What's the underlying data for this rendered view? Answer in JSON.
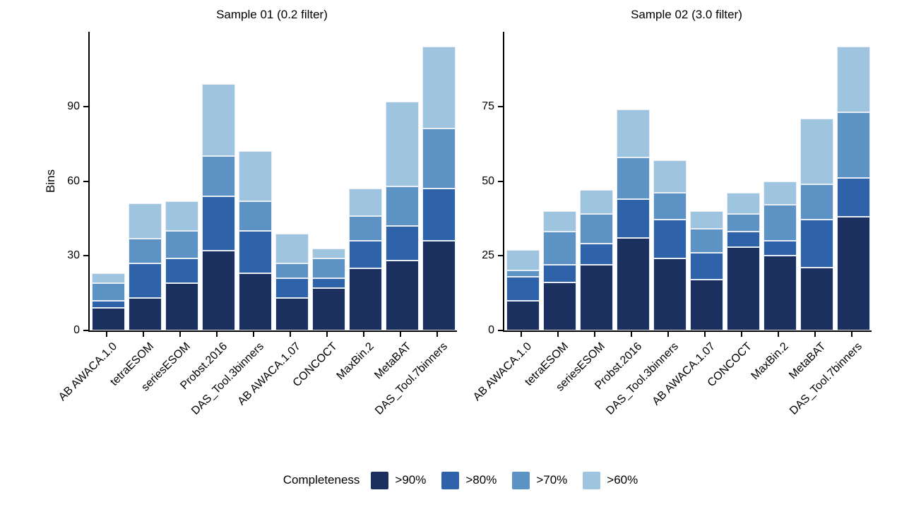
{
  "figure": {
    "y_axis_label": "Bins",
    "legend": {
      "title": "Completeness",
      "items": [
        {
          "label": ">90%",
          "color": "#1C3060"
        },
        {
          "label": ">80%",
          "color": "#2E63A9"
        },
        {
          "label": ">70%",
          "color": "#5D92C4"
        },
        {
          "label": ">60%",
          "color": "#9FC4E0"
        }
      ]
    }
  },
  "chart_data": [
    {
      "type": "bar",
      "stacked": true,
      "title": "Sample 01 (0.2 filter)",
      "xlabel": "",
      "ylabel": "Bins",
      "legend_position": "bottom",
      "grid": false,
      "categories": [
        "AB AWACA.1.0",
        "tetraESOM",
        "seriesESOM",
        "Probst.2016",
        "DAS_Tool.3binners",
        "AB AWACA.1.07",
        "CONCOCT",
        "MaxBin.2",
        "MetaBAT",
        "DAS_Tool.7binners"
      ],
      "series": [
        {
          "name": ">90%",
          "color": "#1C3060",
          "values": [
            9,
            13,
            19,
            32,
            23,
            13,
            17,
            25,
            28,
            36
          ]
        },
        {
          "name": ">80%",
          "color": "#2E63A9",
          "values": [
            3,
            14,
            10,
            22,
            17,
            8,
            4,
            11,
            14,
            21
          ]
        },
        {
          "name": ">70%",
          "color": "#5D92C4",
          "values": [
            7,
            10,
            11,
            16,
            12,
            6,
            8,
            10,
            16,
            24
          ]
        },
        {
          "name": ">60%",
          "color": "#9FC4E0",
          "values": [
            4,
            14,
            12,
            29,
            20,
            12,
            4,
            11,
            34,
            33
          ]
        }
      ],
      "totals": [
        23,
        51,
        52,
        99,
        72,
        39,
        33,
        57,
        92,
        114
      ],
      "yticks": [
        0,
        30,
        60,
        90
      ],
      "ylim": [
        0,
        120
      ]
    },
    {
      "type": "bar",
      "stacked": true,
      "title": "Sample 02 (3.0 filter)",
      "xlabel": "",
      "ylabel": "",
      "legend_position": "bottom",
      "grid": false,
      "categories": [
        "AB AWACA.1.0",
        "tetraESOM",
        "seriesESOM",
        "Probst.2016",
        "DAS_Tool.3binners",
        "AB AWACA.1.07",
        "CONCOCT",
        "MaxBin.2",
        "MetaBAT",
        "DAS_Tool.7binners"
      ],
      "series": [
        {
          "name": ">90%",
          "color": "#1C3060",
          "values": [
            10,
            16,
            22,
            31,
            24,
            17,
            28,
            25,
            21,
            38
          ]
        },
        {
          "name": ">80%",
          "color": "#2E63A9",
          "values": [
            8,
            6,
            7,
            13,
            13,
            9,
            5,
            5,
            16,
            13
          ]
        },
        {
          "name": ">70%",
          "color": "#5D92C4",
          "values": [
            2,
            11,
            10,
            14,
            9,
            8,
            6,
            12,
            12,
            22
          ]
        },
        {
          "name": ">60%",
          "color": "#9FC4E0",
          "values": [
            7,
            7,
            8,
            16,
            11,
            6,
            7,
            8,
            22,
            22
          ]
        }
      ],
      "totals": [
        27,
        40,
        47,
        74,
        57,
        40,
        46,
        50,
        71,
        95
      ],
      "yticks": [
        0,
        25,
        50,
        75
      ],
      "ylim": [
        0,
        100
      ]
    }
  ]
}
